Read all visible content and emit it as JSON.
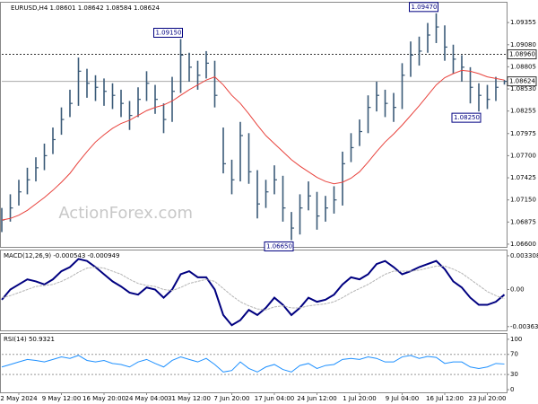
{
  "chart_data": [
    {
      "type": "ohlc",
      "title": "EURUSD,H4 1.08601 1.08642 1.08584 1.08624",
      "watermark": "ActionForex.com",
      "categories": [
        null,
        null,
        "2 May 2024",
        null,
        null,
        null,
        null,
        "9 May 12:00",
        null,
        null,
        null,
        null,
        "16 May 20:00",
        null,
        null,
        null,
        null,
        "24 May 04:00",
        null,
        null,
        null,
        null,
        "31 May 12:00",
        null,
        null,
        null,
        null,
        "7 Jun 20:00",
        null,
        null,
        null,
        null,
        "17 Jun 04:00",
        null,
        null,
        null,
        null,
        "24 Jun 12:00",
        null,
        null,
        null,
        null,
        "1 Jul 20:00",
        null,
        null,
        null,
        null,
        "9 Jul 04:00",
        null,
        null,
        null,
        null,
        "16 Jul 12:00",
        null,
        null,
        null,
        null,
        "23 Jul 20:00",
        null,
        null
      ],
      "close": [
        1.069,
        1.0705,
        1.0725,
        1.074,
        1.0755,
        1.077,
        1.079,
        1.0815,
        1.0835,
        1.0875,
        1.086,
        1.0855,
        1.085,
        1.0845,
        1.0835,
        1.082,
        1.084,
        1.086,
        1.084,
        1.0815,
        1.085,
        1.0895,
        1.088,
        1.087,
        1.0885,
        1.0845,
        1.076,
        1.074,
        1.0795,
        1.075,
        1.071,
        1.0725,
        1.074,
        1.0705,
        1.068,
        1.0705,
        1.072,
        1.0695,
        1.0705,
        1.0715,
        1.076,
        1.078,
        1.08,
        1.083,
        1.0845,
        1.0835,
        1.083,
        1.087,
        1.0895,
        1.09,
        1.092,
        1.093,
        1.0905,
        1.089,
        1.088,
        1.0855,
        1.0845,
        1.084,
        1.0855,
        1.08624
      ],
      "high": [
        1.0705,
        1.0722,
        1.074,
        1.0755,
        1.0768,
        1.0785,
        1.0805,
        1.083,
        1.0852,
        1.0892,
        1.0878,
        1.087,
        1.0866,
        1.086,
        1.0852,
        1.0838,
        1.0855,
        1.0875,
        1.0858,
        1.0835,
        1.0868,
        1.0915,
        1.0898,
        1.0888,
        1.09,
        1.0888,
        1.0805,
        1.0765,
        1.0812,
        1.0798,
        1.0752,
        1.074,
        1.0758,
        1.0745,
        1.07,
        1.0722,
        1.0738,
        1.0725,
        1.072,
        1.0732,
        1.0775,
        1.0798,
        1.0815,
        1.0845,
        1.0862,
        1.0852,
        1.0848,
        1.0885,
        1.0912,
        1.0918,
        1.0935,
        1.0947,
        1.0932,
        1.0908,
        1.0895,
        1.088,
        1.086,
        1.0858,
        1.0868,
        1.08642
      ],
      "low": [
        1.0675,
        1.0688,
        1.0708,
        1.0722,
        1.0738,
        1.0752,
        1.0772,
        1.0796,
        1.0818,
        1.0832,
        1.0842,
        1.0838,
        1.0832,
        1.0828,
        1.0818,
        1.0802,
        1.0818,
        1.0838,
        1.0822,
        1.0798,
        1.0812,
        1.0848,
        1.0862,
        1.0852,
        1.0866,
        1.083,
        1.0748,
        1.0722,
        1.0738,
        1.0735,
        1.0692,
        1.0705,
        1.0722,
        1.0688,
        1.0665,
        1.0672,
        1.0702,
        1.0678,
        1.0688,
        1.0698,
        1.0708,
        1.0762,
        1.0782,
        1.0798,
        1.0825,
        1.0818,
        1.0812,
        1.0828,
        1.0868,
        1.0882,
        1.0898,
        1.091,
        1.0888,
        1.0872,
        1.0862,
        1.0835,
        1.0825,
        1.0828,
        1.0838,
        1.08584
      ],
      "color": "#3a5a78",
      "overlays": [
        {
          "color": "#e8423c",
          "values": [
            1.069,
            1.0692,
            1.0696,
            1.0702,
            1.071,
            1.0718,
            1.0727,
            1.0737,
            1.0748,
            1.0762,
            1.0775,
            1.0787,
            1.0796,
            1.0804,
            1.081,
            1.0814,
            1.082,
            1.0826,
            1.083,
            1.0833,
            1.0838,
            1.0845,
            1.0852,
            1.0858,
            1.0864,
            1.0868,
            1.0858,
            1.0845,
            1.0835,
            1.0822,
            1.0808,
            1.0795,
            1.0785,
            1.0775,
            1.0765,
            1.0757,
            1.075,
            1.0743,
            1.0738,
            1.0735,
            1.0737,
            1.0742,
            1.075,
            1.0762,
            1.0775,
            1.0787,
            1.0797,
            1.0808,
            1.082,
            1.0832,
            1.0845,
            1.0858,
            1.0867,
            1.0872,
            1.0876,
            1.0875,
            1.0872,
            1.0868,
            1.0866,
            1.0864
          ]
        }
      ],
      "hlines": [
        {
          "value": 1.0896,
          "label": "1.08960",
          "style": "dashed"
        },
        {
          "value": 1.08624,
          "label": "1.08624",
          "style": "solid"
        }
      ],
      "annotations": [
        {
          "bar": 21,
          "value": 1.0915,
          "label": "1.09150",
          "side": "above"
        },
        {
          "bar": 51,
          "value": 1.0947,
          "label": "1.09470",
          "side": "above"
        },
        {
          "bar": 56,
          "value": 1.0825,
          "label": "1.08250",
          "side": "below"
        },
        {
          "bar": 34,
          "value": 1.0665,
          "label": "1.06650",
          "side": "below"
        }
      ],
      "ylim": [
        1.06566,
        1.09602
      ],
      "yticks": [
        {
          "value": 1.066,
          "label": "1.06600"
        },
        {
          "value": 1.06875,
          "label": "1.06875"
        },
        {
          "value": 1.0715,
          "label": "1.07150"
        },
        1.07425,
        {
          "value": 1.077,
          "label": "1.07700"
        },
        1.07975,
        1.08255,
        {
          "value": 1.0853,
          "label": "1.08530"
        },
        1.08805,
        {
          "value": 1.0908,
          "label": "1.09080"
        },
        1.09355
      ]
    },
    {
      "type": "line",
      "title": "MACD(12,26,9) -0.000543 -0.000949",
      "series": [
        {
          "color": "#000080",
          "values": [
            -0.001,
            0.0,
            0.0005,
            0.001,
            0.0008,
            0.0005,
            0.001,
            0.0018,
            0.0022,
            0.003,
            0.0028,
            0.0022,
            0.0015,
            0.0008,
            0.0003,
            -0.0003,
            -0.0005,
            0.0002,
            0.0,
            -0.0008,
            0.0,
            0.0015,
            0.0018,
            0.0012,
            0.0012,
            0.0,
            -0.0025,
            -0.0035,
            -0.003,
            -0.002,
            -0.0025,
            -0.0018,
            -0.0008,
            -0.0015,
            -0.0025,
            -0.0018,
            -0.0008,
            -0.0012,
            -0.001,
            -0.0005,
            0.0005,
            0.0012,
            0.001,
            0.0015,
            0.0025,
            0.0028,
            0.0022,
            0.0015,
            0.0018,
            0.0022,
            0.0025,
            0.0028,
            0.002,
            0.0008,
            0.0002,
            -0.0008,
            -0.0015,
            -0.0015,
            -0.0012,
            -0.0005
          ]
        },
        {
          "color": "#b4b4b4",
          "values": [
            -0.0008,
            -0.0006,
            -0.0003,
            0.0,
            0.0003,
            0.0004,
            0.0005,
            0.0008,
            0.0012,
            0.0017,
            0.0021,
            0.0022,
            0.0021,
            0.0018,
            0.0015,
            0.001,
            0.0006,
            0.0004,
            0.0003,
            0.0,
            -0.0001,
            0.0002,
            0.0006,
            0.0008,
            0.001,
            0.0008,
            0.0001,
            -0.0006,
            -0.0012,
            -0.0016,
            -0.0019,
            -0.002,
            -0.0017,
            -0.0016,
            -0.0018,
            -0.0018,
            -0.0016,
            -0.0015,
            -0.0014,
            -0.0012,
            -0.0008,
            -0.0003,
            0.0001,
            0.0005,
            0.001,
            0.0015,
            0.0018,
            0.0018,
            0.0018,
            0.0019,
            0.0021,
            0.0023,
            0.0023,
            0.002,
            0.0016,
            0.001,
            0.0004,
            -0.0002,
            -0.0006,
            -0.0009
          ]
        }
      ],
      "ylim": [
        -0.004005,
        0.00383
      ],
      "yticks": [
        0.003308,
        {
          "value": 0,
          "label": "0.00"
        },
        -0.003635
      ]
    },
    {
      "type": "line",
      "title": "RSI(14) 50.9321",
      "series": [
        {
          "color": "#1e90ff",
          "values": [
            45,
            50,
            55,
            60,
            58,
            55,
            60,
            65,
            62,
            68,
            58,
            55,
            58,
            52,
            50,
            45,
            55,
            60,
            52,
            45,
            58,
            65,
            60,
            55,
            62,
            50,
            35,
            38,
            55,
            42,
            35,
            45,
            50,
            40,
            35,
            48,
            52,
            42,
            48,
            50,
            60,
            62,
            60,
            65,
            62,
            55,
            55,
            65,
            68,
            62,
            66,
            64,
            52,
            55,
            55,
            45,
            42,
            45,
            52,
            50.93
          ]
        }
      ],
      "levels": [
        70,
        30
      ],
      "ylim": [
        -5.3,
        110.5
      ],
      "yticks": [
        100,
        70,
        30,
        0
      ]
    }
  ]
}
